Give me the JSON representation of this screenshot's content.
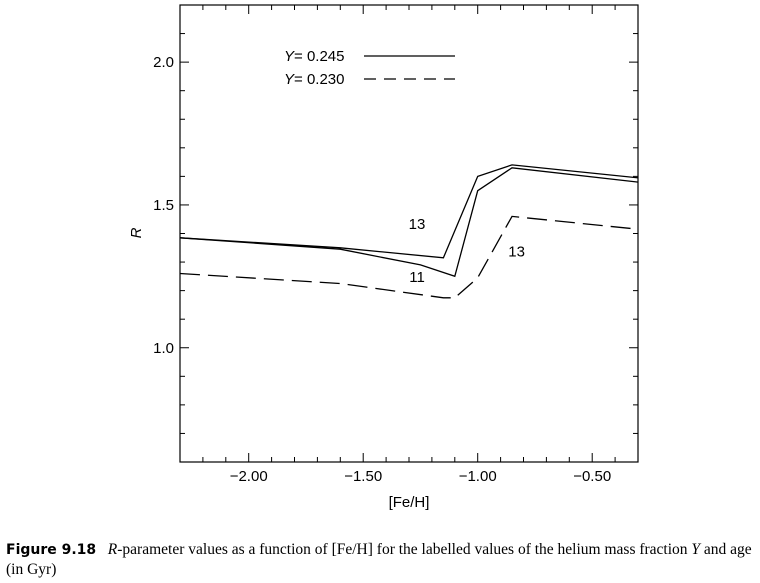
{
  "chart_data": {
    "type": "line",
    "xlabel": "[Fe/H]",
    "ylabel": "R",
    "xlim": [
      -2.3,
      -0.3
    ],
    "ylim": [
      0.6,
      2.2
    ],
    "xticks": [
      {
        "value": -2.0,
        "label": "−2.00"
      },
      {
        "value": -1.5,
        "label": "−1.50"
      },
      {
        "value": -1.0,
        "label": "−1.00"
      },
      {
        "value": -0.5,
        "label": "−0.50"
      }
    ],
    "yticks": [
      {
        "value": 1.0,
        "label": "1.0"
      },
      {
        "value": 1.5,
        "label": "1.5"
      },
      {
        "value": 2.0,
        "label": "2.0"
      }
    ],
    "legend_position": "top-left",
    "legend": [
      {
        "var": "Y",
        "value": "= 0.245",
        "style": "solid"
      },
      {
        "var": "Y",
        "value": "= 0.230",
        "style": "dashed"
      }
    ],
    "series": [
      {
        "style": "solid",
        "age_label": "13",
        "x": [
          -2.3,
          -1.6,
          -1.15,
          -1.0,
          -0.85,
          -0.3
        ],
        "y": [
          1.385,
          1.35,
          1.315,
          1.6,
          1.64,
          1.595
        ]
      },
      {
        "style": "solid",
        "age_label": "11",
        "x": [
          -2.3,
          -1.6,
          -1.25,
          -1.1,
          -1.0,
          -0.85,
          -0.3
        ],
        "y": [
          1.385,
          1.345,
          1.29,
          1.25,
          1.55,
          1.63,
          1.58
        ]
      },
      {
        "style": "dashed",
        "age_label": "13",
        "x": [
          -2.3,
          -1.6,
          -1.15,
          -1.1,
          -1.0,
          -0.85,
          -0.3
        ],
        "y": [
          1.26,
          1.225,
          1.175,
          1.175,
          1.245,
          1.46,
          1.415
        ]
      }
    ],
    "annotations": [
      {
        "text": "13",
        "x": -1.265,
        "y": 1.415
      },
      {
        "text": "11",
        "x": -1.265,
        "y": 1.23
      },
      {
        "text": "13",
        "x": -0.83,
        "y": 1.32
      }
    ]
  },
  "caption": {
    "figure_label": "Figure 9.18",
    "text_parts": [
      {
        "t": "R",
        "i": true
      },
      {
        "t": "-parameter values as a function of [Fe/H] for the labelled values of the helium mass fraction ",
        "i": false
      },
      {
        "t": "Y",
        "i": true
      },
      {
        "t": " and age (in Gyr)",
        "i": false
      }
    ]
  }
}
